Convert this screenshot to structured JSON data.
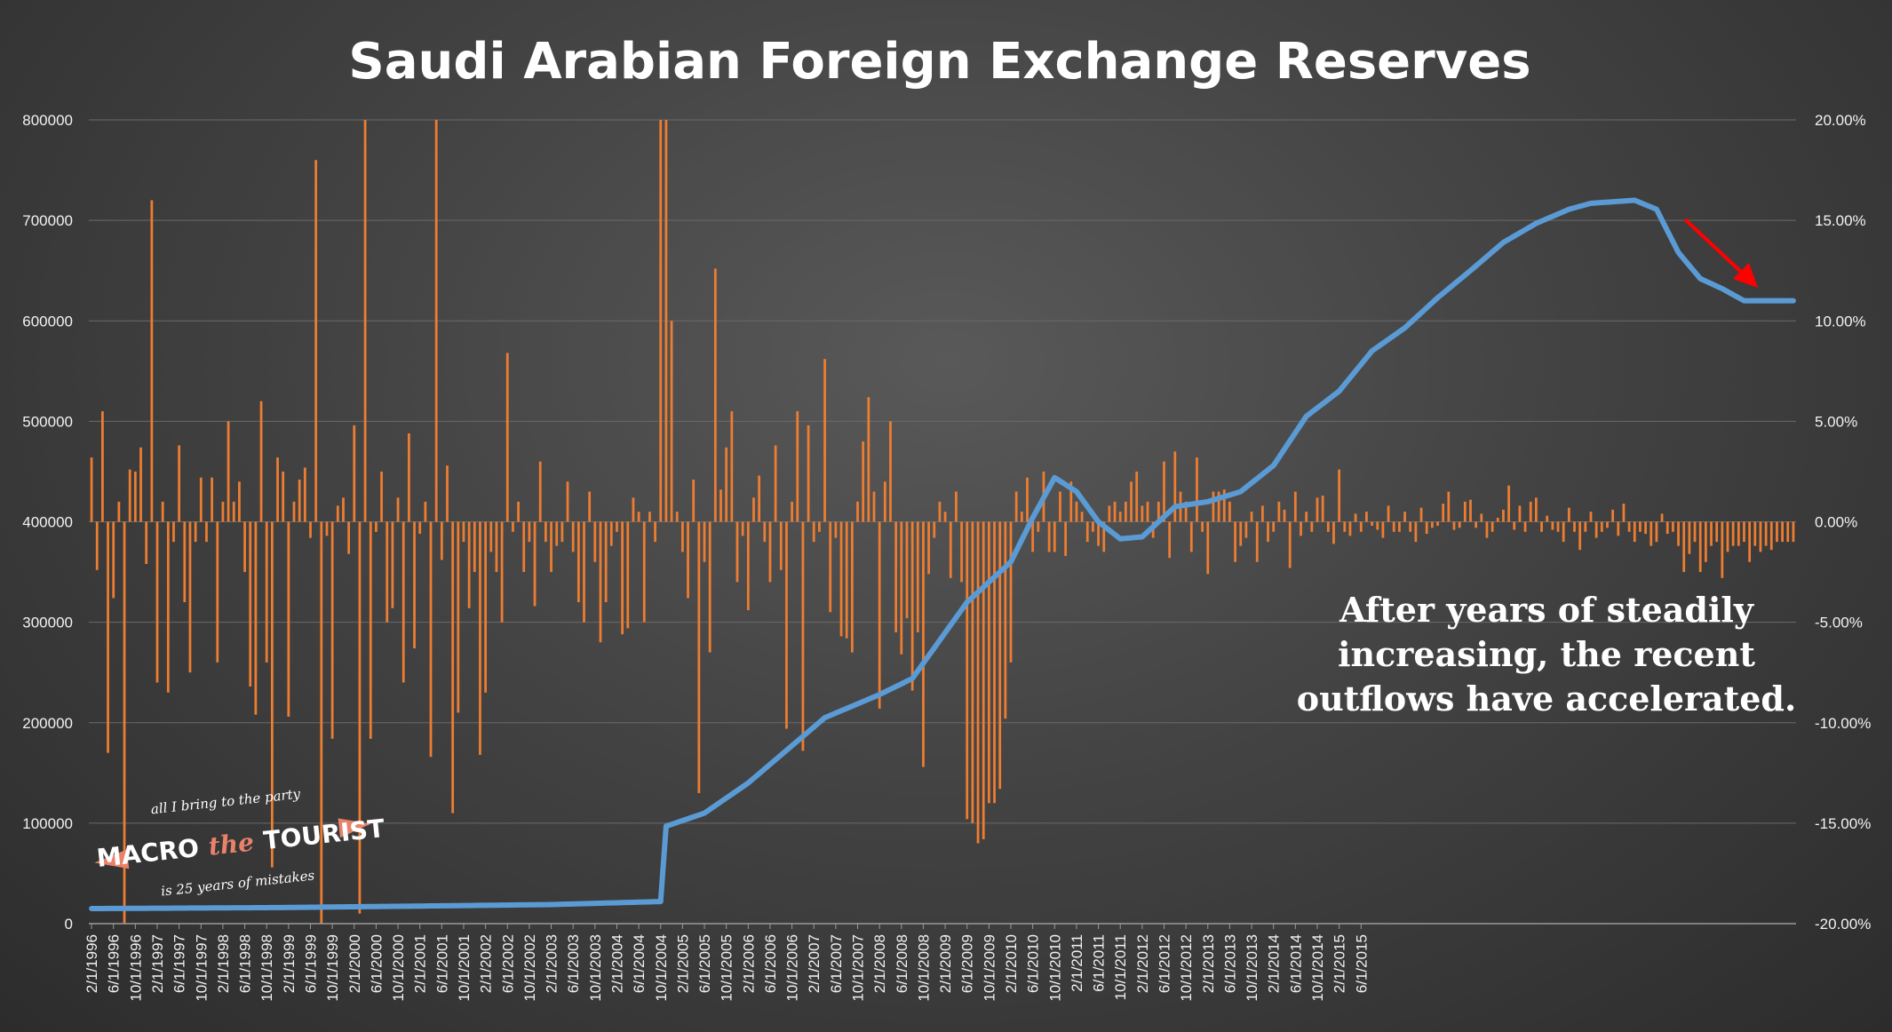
{
  "chart_data": {
    "type": "bar+line",
    "title": "Saudi Arabian Foreign Exchange Reserves",
    "left_axis": {
      "ylim": [
        0,
        800000
      ],
      "ticks": [
        "800000",
        "700000",
        "600000",
        "500000",
        "400000",
        "300000",
        "200000",
        "100000",
        "0"
      ]
    },
    "right_axis": {
      "ylim": [
        -20,
        20
      ],
      "unit": "%",
      "ticks": [
        "20.00%",
        "15.00%",
        "10.00%",
        "5.00%",
        "0.00%",
        "-5.00%",
        "-10.00%",
        "-15.00%",
        "-20.00%"
      ]
    },
    "x_start": "2/1/1996",
    "x_tick_labels": [
      "2/1/1996",
      "6/1/1996",
      "10/1/1996",
      "2/1/1997",
      "6/1/1997",
      "10/1/1997",
      "2/1/1998",
      "6/1/1998",
      "10/1/1998",
      "2/1/1999",
      "6/1/1999",
      "10/1/1999",
      "2/1/2000",
      "6/1/2000",
      "10/1/2000",
      "2/1/2001",
      "6/1/2001",
      "10/1/2001",
      "2/1/2002",
      "6/1/2002",
      "10/1/2002",
      "2/1/2003",
      "6/1/2003",
      "10/1/2003",
      "2/1/2004",
      "6/1/2004",
      "10/1/2004",
      "2/1/2005",
      "6/1/2005",
      "10/1/2005",
      "2/1/2006",
      "6/1/2006",
      "10/1/2006",
      "2/1/2007",
      "6/1/2007",
      "10/1/2007",
      "2/1/2008",
      "6/1/2008",
      "10/1/2008",
      "2/1/2009",
      "6/1/2009",
      "10/1/2009",
      "2/1/2010",
      "6/1/2010",
      "10/1/2010",
      "2/1/2011",
      "6/1/2011",
      "10/1/2011",
      "2/1/2012",
      "6/1/2012",
      "10/1/2012",
      "2/1/2013",
      "6/1/2013",
      "10/1/2013",
      "2/1/2014",
      "6/1/2014",
      "10/1/2014",
      "2/1/2015",
      "6/1/2015"
    ],
    "grid": true,
    "colors": {
      "line": "#5b9bd5",
      "bars": "#ed7d31",
      "arrow": "#ff0000"
    },
    "reserves_line": {
      "anchors": [
        [
          0,
          15000
        ],
        [
          34,
          16000
        ],
        [
          60,
          17500
        ],
        [
          84,
          19000
        ],
        [
          104,
          22000
        ],
        [
          105,
          97000
        ],
        [
          112,
          110000
        ],
        [
          120,
          140000
        ],
        [
          134,
          205000
        ],
        [
          144,
          228000
        ],
        [
          150,
          244000
        ],
        [
          160,
          320000
        ],
        [
          168,
          360000
        ],
        [
          172,
          404000
        ],
        [
          176,
          444000
        ],
        [
          180,
          430000
        ],
        [
          184,
          400000
        ],
        [
          188,
          383000
        ],
        [
          192,
          385000
        ],
        [
          198,
          415000
        ],
        [
          204,
          420000
        ],
        [
          210,
          430000
        ],
        [
          216,
          456000
        ],
        [
          222,
          505000
        ],
        [
          228,
          530000
        ],
        [
          234,
          570000
        ],
        [
          240,
          593000
        ],
        [
          246,
          623000
        ],
        [
          252,
          650000
        ],
        [
          258,
          678000
        ],
        [
          264,
          697000
        ],
        [
          270,
          711000
        ],
        [
          274,
          717000
        ],
        [
          282,
          720000
        ],
        [
          286,
          711000
        ],
        [
          290,
          668000
        ],
        [
          294,
          642000
        ],
        [
          298,
          632000
        ],
        [
          302,
          620000
        ]
      ]
    },
    "monthly_change_pct": [
      3.2,
      -2.4,
      5.5,
      -11.5,
      -3.8,
      1.0,
      -20.0,
      2.6,
      2.5,
      3.7,
      -2.1,
      16.0,
      -8.0,
      1.0,
      -8.5,
      -1.0,
      3.8,
      -4.0,
      -7.5,
      -1.0,
      2.2,
      -1.0,
      2.2,
      -7.0,
      1.0,
      5.0,
      1.0,
      2.0,
      -2.5,
      -8.2,
      -9.6,
      6.0,
      -7.0,
      -17.2,
      3.2,
      2.5,
      -9.7,
      1.0,
      2.1,
      2.7,
      -0.8,
      18.0,
      -33.0,
      -0.7,
      -10.8,
      0.8,
      1.2,
      -1.6,
      4.8,
      -19.5,
      20.0,
      -10.8,
      -0.5,
      2.5,
      -5.0,
      -4.3,
      1.2,
      -8.0,
      4.4,
      -6.3,
      -0.6,
      1.0,
      -11.7,
      20.0,
      -1.9,
      2.8,
      -14.5,
      -9.5,
      -1.0,
      -4.3,
      -2.5,
      -11.6,
      -8.5,
      -1.5,
      -2.5,
      -5.0,
      8.4,
      -0.5,
      1.0,
      -2.5,
      -1.0,
      -4.2,
      3.0,
      -1.0,
      -2.5,
      -1.2,
      -1.0,
      2.0,
      -1.5,
      -4.0,
      -5.0,
      1.5,
      -2.0,
      -6.0,
      -4.0,
      -1.2,
      -0.5,
      -5.6,
      -5.3,
      1.2,
      0.5,
      -5.0,
      0.5,
      -1.0,
      24.0,
      20.0,
      10.0,
      0.5,
      -1.5,
      -3.8,
      2.1,
      -13.5,
      -2.0,
      -6.5,
      12.6,
      1.6,
      3.7,
      5.5,
      -3.0,
      -0.7,
      -4.4,
      1.2,
      2.3,
      -1.0,
      -3.0,
      3.8,
      -2.4,
      -10.3,
      1.0,
      5.5,
      -11.4,
      4.8,
      -1.0,
      -0.5,
      8.1,
      -4.5,
      -0.8,
      -5.7,
      -5.8,
      -6.5,
      1.0,
      4.0,
      6.2,
      1.5,
      -9.3,
      2.0,
      5.0,
      -5.5,
      -6.6,
      -4.8,
      -8.4,
      -5.5,
      -12.2,
      -2.6,
      -0.8,
      1.0,
      0.5,
      -2.8,
      1.5,
      -3.0,
      -14.8,
      -15.0,
      -16.0,
      -15.8,
      -14.0,
      -14.0,
      -13.3,
      -9.8,
      -7.0,
      1.5,
      0.5,
      2.2,
      -1.5,
      -0.5,
      2.5,
      -1.5,
      -1.5,
      1.5,
      -1.7,
      2.0,
      1.0,
      0.5,
      -1.0,
      -0.5,
      -1.2,
      -1.5,
      0.8,
      1.0,
      0.5,
      1.0,
      2.0,
      2.5,
      0.8,
      1.0,
      -0.8,
      1.0,
      3.0,
      -1.8,
      3.5,
      1.5,
      1.0,
      -1.5,
      3.2,
      -0.5,
      -2.6,
      1.5,
      1.5,
      1.6,
      1.0,
      -2.0,
      -1.2,
      -0.8,
      0.5,
      -2.0,
      0.8,
      -1.0,
      -0.5,
      1.0,
      0.6,
      -2.3,
      1.5,
      -0.7,
      0.5,
      -0.5,
      1.2,
      1.3,
      -0.5,
      -1.1,
      2.6,
      -0.5,
      -0.7,
      0.4,
      -0.5,
      0.5,
      -0.2,
      -0.4,
      -0.8,
      0.8,
      -0.5,
      -0.5,
      0.5,
      -0.5,
      -1.0,
      0.7,
      -0.6,
      -0.3,
      -0.2,
      0.9,
      1.5,
      -0.4,
      -0.3,
      1.0,
      1.1,
      -0.3,
      0.4,
      -0.8,
      -0.5,
      0.2,
      0.6,
      1.8,
      -0.4,
      0.8,
      -0.5,
      1.0,
      1.2,
      -0.5,
      0.3,
      -0.4,
      -0.5,
      -1.0,
      0.7,
      -0.5,
      -1.4,
      -0.5,
      0.5,
      -0.8,
      -0.5,
      -0.3,
      0.6,
      -0.7,
      0.9,
      -0.5,
      -1.0,
      -0.5,
      -0.6,
      -1.2,
      -1.0,
      0.4,
      -0.6,
      -0.5,
      -1.2,
      -2.5,
      -1.6,
      -1.0,
      -2.5,
      -2.0,
      -1.2,
      -1.0,
      -2.8,
      -1.5,
      -1.2,
      -1.2,
      -1.0,
      -2.0,
      -1.2,
      -1.5,
      -1.2,
      -1.4,
      -1.0,
      -1.0,
      -1.0,
      -1.0
    ]
  },
  "annotation": {
    "lines": [
      "After years of steadily",
      "increasing, the recent",
      "outflows have accelerated."
    ]
  },
  "watermark": {
    "top": "all I bring to the party",
    "macro": "MACRO",
    "the": "the",
    "tourist": "TOURIST",
    "bottom": "is 25 years of mistakes"
  }
}
